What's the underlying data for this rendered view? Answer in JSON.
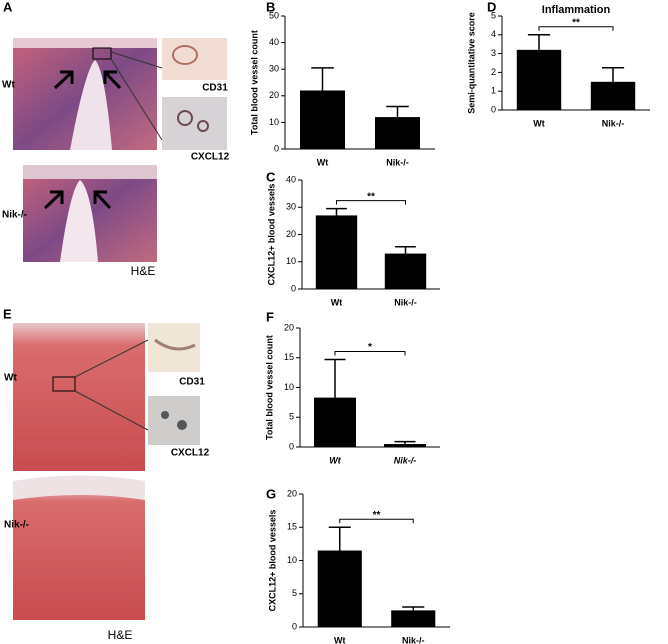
{
  "histology": [
    {
      "label": "A",
      "top_label": "Wt",
      "bottom_label": "Nik-/-",
      "insets": [
        "CD31",
        "CXCL12"
      ],
      "stain": "H&E"
    },
    {
      "label": "E",
      "top_label": "Wt",
      "bottom_label": "Nik-/-",
      "insets": [
        "CD31",
        "CXCL12"
      ],
      "stain": "H&E"
    }
  ],
  "chart_data": [
    {
      "type": "bar",
      "label": "B",
      "ylabel": "Total blood vessel count",
      "categories": [
        "Wt",
        "Nik-/-"
      ],
      "series": [
        {
          "color": "#000000",
          "values": [
            22,
            12
          ],
          "errors": [
            8.5,
            4
          ]
        }
      ],
      "ylim": [
        0,
        50
      ],
      "yticks": [
        0,
        10,
        20,
        30,
        40,
        50
      ]
    },
    {
      "type": "bar",
      "label": "D",
      "title": "Inflammation",
      "ylabel": "Semi-quantitative score",
      "categories": [
        "Wt",
        "Nik-/-"
      ],
      "series": [
        {
          "color": "#000000",
          "values": [
            3.2,
            1.5
          ],
          "errors": [
            0.8,
            0.75
          ]
        }
      ],
      "ylim": [
        0,
        5
      ],
      "yticks": [
        0,
        1,
        2,
        3,
        4,
        5
      ],
      "significance": "**"
    },
    {
      "type": "bar",
      "label": "C",
      "ylabel": "CXCL12+ blood vessels",
      "categories": [
        "Wt",
        "Nik-/-"
      ],
      "series": [
        {
          "color": "#000000",
          "values": [
            27,
            13
          ],
          "errors": [
            2.5,
            2.5
          ]
        }
      ],
      "ylim": [
        0,
        40
      ],
      "yticks": [
        0,
        10,
        20,
        30,
        40
      ],
      "significance": "**"
    },
    {
      "type": "bar",
      "label": "F",
      "ylabel": "Total blood vessel count",
      "categories": [
        "Wt",
        "Nik-/-"
      ],
      "series": [
        {
          "color": "#000000",
          "values": [
            8.3,
            0.5
          ],
          "errors": [
            6.4,
            0.4
          ]
        }
      ],
      "ylim": [
        0,
        20
      ],
      "yticks": [
        0,
        5,
        10,
        15,
        20
      ],
      "significance": "*",
      "italic_categories": true
    },
    {
      "type": "bar",
      "label": "G",
      "ylabel": "CXCL12+ blood vessels",
      "categories": [
        "Wt",
        "Nik-/-"
      ],
      "series": [
        {
          "color": "#000000",
          "values": [
            11.5,
            2.5
          ],
          "errors": [
            3.5,
            0.5
          ]
        }
      ],
      "ylim": [
        0,
        20
      ],
      "yticks": [
        0,
        5,
        10,
        15,
        20
      ],
      "significance": "**"
    }
  ]
}
